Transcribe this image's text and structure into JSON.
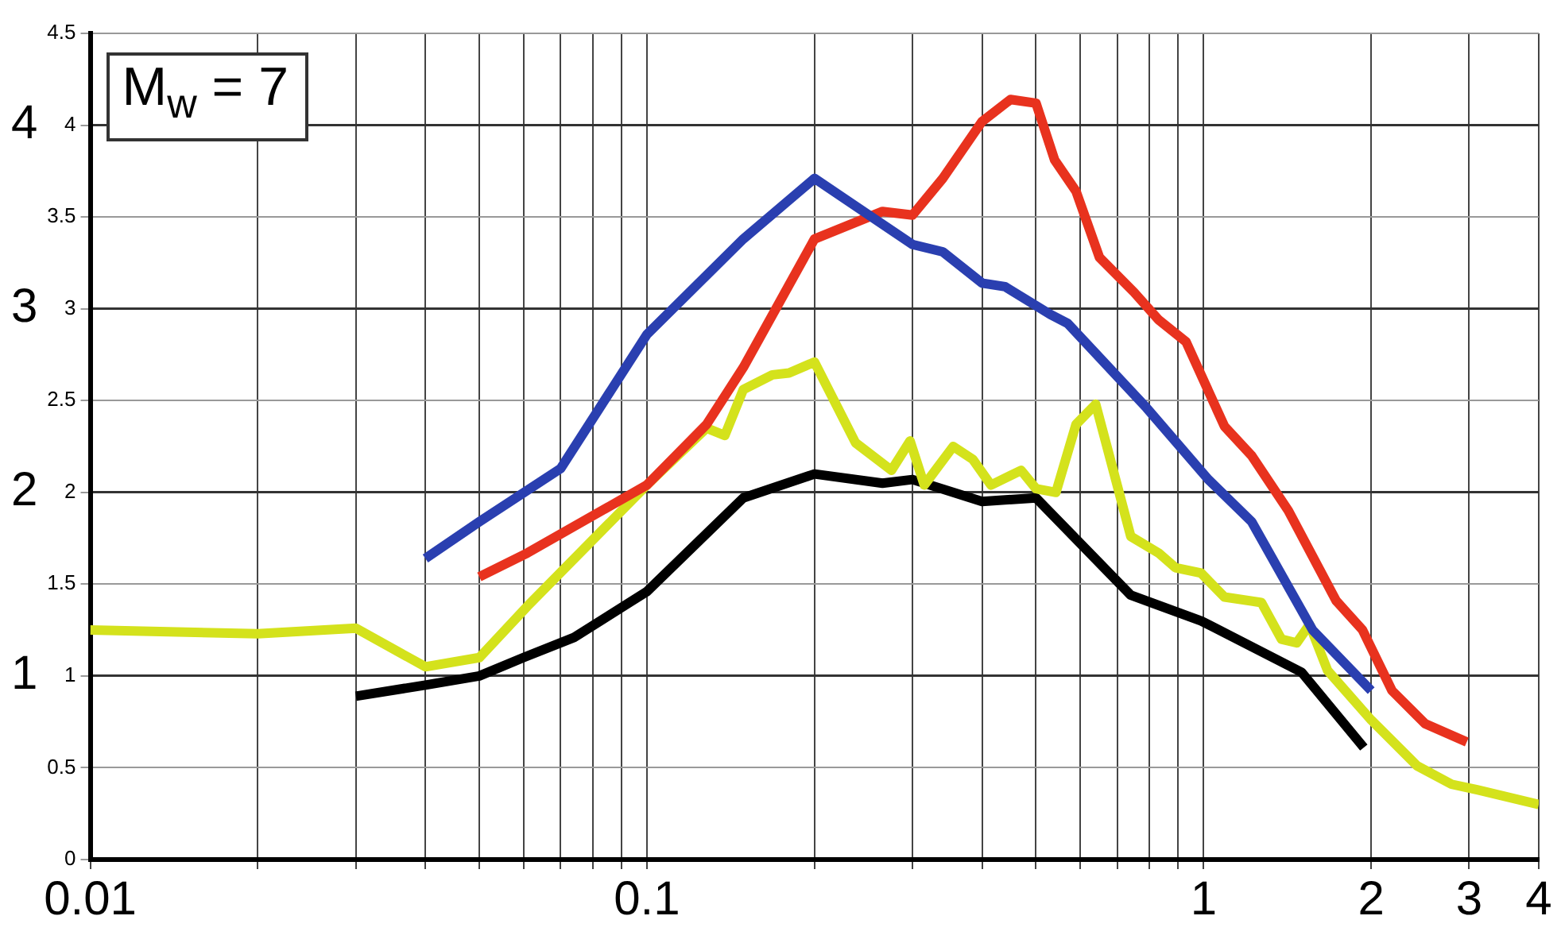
{
  "chart_data": {
    "type": "line",
    "log": "x",
    "grid": true,
    "legend": false,
    "marker": "none",
    "line_style": "solid",
    "xlim": [
      0.01,
      4
    ],
    "xticks": [
      0.01,
      {
        "value": 0.02,
        "label": null
      },
      {
        "value": 0.03,
        "label": null
      },
      {
        "value": 0.04,
        "label": null
      },
      {
        "value": 0.05,
        "label": null
      },
      {
        "value": 0.06,
        "label": null
      },
      {
        "value": 0.07,
        "label": null
      },
      {
        "value": 0.08,
        "label": null
      },
      {
        "value": 0.09,
        "label": null
      },
      0.1,
      {
        "value": 0.2,
        "label": null
      },
      {
        "value": 0.3,
        "label": null
      },
      {
        "value": 0.4,
        "label": null
      },
      {
        "value": 0.5,
        "label": null
      },
      {
        "value": 0.6,
        "label": null
      },
      {
        "value": 0.7,
        "label": null
      },
      {
        "value": 0.8,
        "label": null
      },
      {
        "value": 0.9,
        "label": null
      },
      1,
      2,
      3,
      4
    ],
    "ylim": [
      0,
      4.5
    ],
    "yticks": [
      0,
      0.5,
      1,
      1.5,
      2,
      2.5,
      3,
      3.5,
      4,
      4.5
    ],
    "y2lim": [
      0,
      4.5
    ],
    "y2ticks": [
      1,
      2,
      3,
      4
    ],
    "annotations": [
      "M$_{w}$ = 7"
    ],
    "series": [
      {
        "color": "#2a3fb0",
        "x": [
          0.04,
          0.05,
          0.07,
          0.1,
          0.149,
          0.2,
          0.3,
          0.34,
          0.4,
          0.44,
          0.53,
          0.57,
          0.79,
          1.02,
          1.22,
          1.57,
          2
        ],
        "values": [
          1.64,
          1.84,
          2.13,
          2.86,
          3.38,
          3.71,
          3.35,
          3.31,
          3.14,
          3.12,
          2.97,
          2.92,
          2.46,
          2.07,
          1.84,
          1.25,
          0.92
        ]
      },
      {
        "color": "#e8321e",
        "x": [
          0.05,
          0.061,
          0.1,
          0.128,
          0.149,
          0.2,
          0.265,
          0.3,
          0.34,
          0.4,
          0.45,
          0.5,
          0.54,
          0.59,
          0.65,
          0.75,
          0.83,
          0.93,
          1.09,
          1.22,
          1.42,
          1.73,
          1.93,
          2.18,
          2.5,
          2.97
        ],
        "values": [
          1.54,
          1.67,
          2.04,
          2.37,
          2.68,
          3.38,
          3.53,
          3.51,
          3.71,
          4.02,
          4.14,
          4.12,
          3.81,
          3.64,
          3.28,
          3.09,
          2.94,
          2.82,
          2.36,
          2.2,
          1.9,
          1.41,
          1.25,
          0.92,
          0.74,
          0.64
        ]
      },
      {
        "color": "#d4e21c",
        "x": [
          0.01,
          0.02,
          0.03,
          0.04,
          0.05,
          0.061,
          0.1,
          0.128,
          0.138,
          0.149,
          0.168,
          0.18,
          0.2,
          0.237,
          0.275,
          0.297,
          0.315,
          0.355,
          0.385,
          0.415,
          0.47,
          0.5,
          0.543,
          0.59,
          0.64,
          0.74,
          0.83,
          0.89,
          0.99,
          1.09,
          1.27,
          1.38,
          1.47,
          1.55,
          1.67,
          2,
          2.42,
          2.79,
          3.1,
          4
        ],
        "values": [
          1.25,
          1.23,
          1.26,
          1.05,
          1.1,
          1.38,
          2.04,
          2.35,
          2.31,
          2.56,
          2.64,
          2.65,
          2.71,
          2.27,
          2.12,
          2.28,
          2.04,
          2.25,
          2.18,
          2.04,
          2.12,
          2.02,
          2,
          2.37,
          2.48,
          1.76,
          1.67,
          1.59,
          1.56,
          1.43,
          1.4,
          1.2,
          1.18,
          1.28,
          1.03,
          0.76,
          0.51,
          0.41,
          0.38,
          0.3
        ]
      },
      {
        "color": "#000000",
        "x": [
          0.03,
          0.04,
          0.05,
          0.06,
          0.074,
          0.1,
          0.149,
          0.2,
          0.265,
          0.3,
          0.4,
          0.5,
          0.74,
          0.99,
          1.5,
          1.94
        ],
        "values": [
          0.89,
          0.95,
          1,
          1.1,
          1.21,
          1.46,
          1.97,
          2.1,
          2.05,
          2.07,
          1.95,
          1.97,
          1.44,
          1.3,
          1.02,
          0.61
        ]
      }
    ]
  }
}
